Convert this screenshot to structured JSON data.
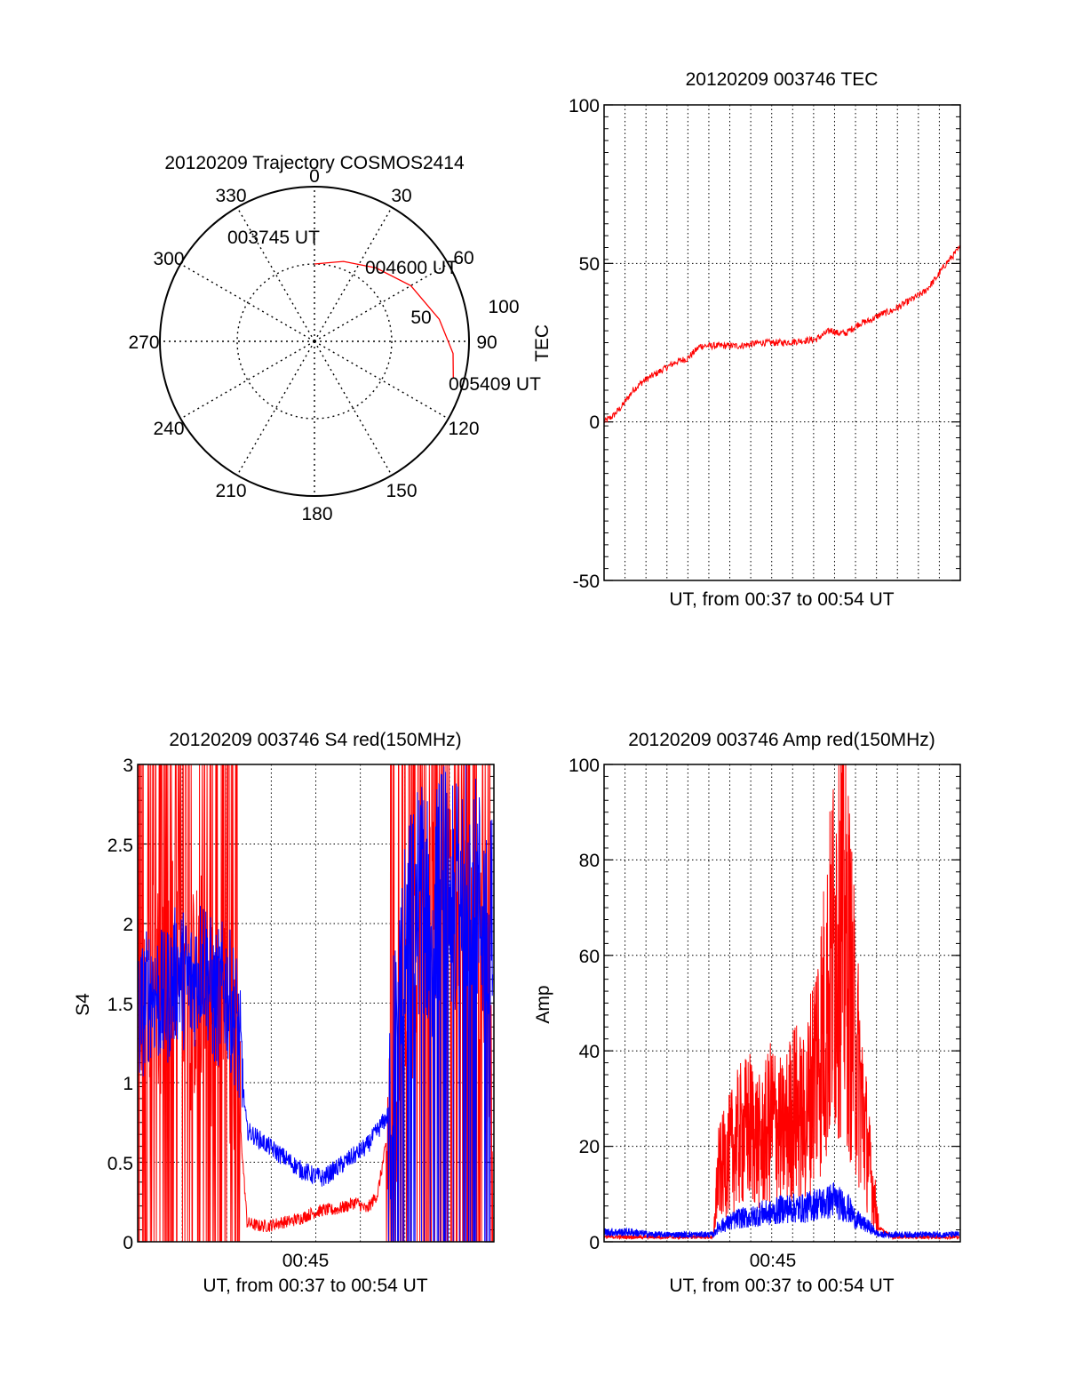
{
  "figure": {
    "polar_title": "20120209 Trajectory COSMOS2414",
    "polar_angle_labels": [
      "0",
      "30",
      "60",
      "90",
      "120",
      "150",
      "180",
      "210",
      "240",
      "270",
      "300",
      "330"
    ],
    "polar_radius_labels": [
      "50",
      "100"
    ],
    "polar_time_labels": [
      "003745 UT",
      "004600 UT",
      "005409 UT"
    ],
    "tec_title": "20120209 003746 TEC",
    "tec_ylabel": "TEC",
    "tec_xlabel": "UT, from 00:37 to 00:54 UT",
    "tec_yticks": [
      "100",
      "50",
      "0",
      "-50"
    ],
    "s4_title": "20120209 003746 S4 red(150MHz)",
    "s4_ylabel": "S4",
    "s4_xlabel": "UT, from 00:37 to 00:54 UT",
    "s4_xtick": "00:45",
    "s4_yticks": [
      "3",
      "2.5",
      "2",
      "1.5",
      "1",
      "0.5",
      "0"
    ],
    "amp_title": "20120209 003746 Amp red(150MHz)",
    "amp_ylabel": "Amp",
    "amp_xlabel": "UT, from 00:37 to 00:54 UT",
    "amp_xtick": "00:45",
    "amp_yticks": [
      "100",
      "80",
      "60",
      "40",
      "20",
      "0"
    ]
  },
  "chart_data": [
    {
      "type": "polar-trajectory",
      "title": "20120209 Trajectory COSMOS2414",
      "angle_ticks_deg": [
        0,
        30,
        60,
        90,
        120,
        150,
        180,
        210,
        240,
        270,
        300,
        330
      ],
      "radius_ticks": [
        50,
        100
      ],
      "radius_max": 100,
      "trajectory": [
        {
          "azimuth": 0,
          "radius": 50
        },
        {
          "azimuth": 20,
          "radius": 55
        },
        {
          "azimuth": 40,
          "radius": 62
        },
        {
          "azimuth": 60,
          "radius": 72
        },
        {
          "azimuth": 80,
          "radius": 82
        },
        {
          "azimuth": 95,
          "radius": 90
        },
        {
          "azimuth": 105,
          "radius": 93
        }
      ],
      "time_labels": [
        {
          "text": "003745 UT",
          "azimuth": 0,
          "radius": 50
        },
        {
          "text": "004600 UT",
          "azimuth": 48,
          "radius": 66
        },
        {
          "text": "005409 UT",
          "azimuth": 105,
          "radius": 93
        }
      ],
      "colors": {
        "trajectory": "#ff0000"
      }
    },
    {
      "type": "line",
      "title": "20120209 003746 TEC",
      "xlabel": "UT, from 00:37 to 00:54 UT",
      "ylabel": "TEC",
      "xlim": [
        37.77,
        54.15
      ],
      "ylim": [
        -50,
        100
      ],
      "yticks": [
        -50,
        0,
        50,
        100
      ],
      "grid": true,
      "series": [
        {
          "color": "#ff0000",
          "x": [
            37.77,
            38.2,
            38.6,
            39.1,
            39.6,
            40.1,
            40.6,
            41.1,
            41.6,
            42.2,
            43.0,
            44.0,
            45.0,
            46.0,
            47.5,
            48.2,
            48.5,
            48.9,
            49.5,
            50.0,
            50.5,
            51.0,
            51.5,
            52.0,
            52.5,
            53.0,
            53.5,
            54.15
          ],
          "y": [
            0,
            2,
            5,
            10,
            13,
            15,
            17,
            19,
            20,
            24,
            24,
            24,
            25,
            25,
            26,
            29,
            28,
            28,
            31,
            32,
            34,
            35,
            37,
            39,
            41,
            45,
            50,
            55
          ]
        }
      ]
    },
    {
      "type": "line",
      "title": "20120209 003746 S4 red(150MHz)",
      "xlabel": "UT, from 00:37 to 00:54 UT",
      "ylabel": "S4",
      "xlim": [
        37.77,
        54.15
      ],
      "ylim": [
        0,
        3
      ],
      "yticks": [
        0,
        0.5,
        1,
        1.5,
        2,
        2.5,
        3
      ],
      "xtick_labels": [
        "00:45"
      ],
      "grid": true,
      "series": [
        {
          "color": "#ff0000",
          "x": [
            37.8,
            38.4,
            39.0,
            39.6,
            40.2,
            40.8,
            41.3,
            41.8,
            42.3,
            42.8,
            43.3,
            43.8,
            44.3,
            44.8,
            45.3,
            45.8,
            46.3,
            46.8,
            47.3,
            47.8,
            48.3,
            48.8,
            49.3,
            49.8,
            50.3,
            50.8,
            51.3,
            51.8,
            52.3,
            52.8,
            53.3,
            53.8,
            54.1
          ],
          "y": [
            1.6,
            1.7,
            1.6,
            1.8,
            1.5,
            1.7,
            1.3,
            1.4,
            1.1,
            0.12,
            0.1,
            0.1,
            0.12,
            0.13,
            0.15,
            0.18,
            0.2,
            0.2,
            0.22,
            0.25,
            0.2,
            0.3,
            0.7,
            1.2,
            1.5,
            1.8,
            2.0,
            1.9,
            2.2,
            2.0,
            1.8,
            1.5,
            0.9
          ]
        },
        {
          "color": "#0000ff",
          "x": [
            37.8,
            38.4,
            39.0,
            39.6,
            40.2,
            40.8,
            41.3,
            41.8,
            42.3,
            42.8,
            43.3,
            43.8,
            44.3,
            44.8,
            45.3,
            45.8,
            46.3,
            46.8,
            47.3,
            47.8,
            48.3,
            48.8,
            49.3,
            49.8,
            50.3,
            50.8,
            51.3,
            51.8,
            52.3,
            52.8,
            53.3,
            53.8,
            54.1
          ],
          "y": [
            1.4,
            1.6,
            1.5,
            1.7,
            1.6,
            1.8,
            1.5,
            1.6,
            1.4,
            0.7,
            0.65,
            0.6,
            0.55,
            0.5,
            0.45,
            0.42,
            0.4,
            0.45,
            0.5,
            0.55,
            0.6,
            0.7,
            0.8,
            1.5,
            2.0,
            2.2,
            2.0,
            2.3,
            2.1,
            2.4,
            2.2,
            2.0,
            2.3
          ]
        }
      ]
    },
    {
      "type": "line",
      "title": "20120209 003746 Amp red(150MHz)",
      "xlabel": "UT, from 00:37 to 00:54 UT",
      "ylabel": "Amp",
      "xlim": [
        37.77,
        54.15
      ],
      "ylim": [
        0,
        100
      ],
      "yticks": [
        0,
        20,
        40,
        60,
        80,
        100
      ],
      "xtick_labels": [
        "00:45"
      ],
      "grid": true,
      "series": [
        {
          "color": "#ff0000",
          "x": [
            37.8,
            39.0,
            40.0,
            41.0,
            42.0,
            42.8,
            43.0,
            43.5,
            44.0,
            44.5,
            45.0,
            45.5,
            46.0,
            46.5,
            47.0,
            47.5,
            48.0,
            48.3,
            48.6,
            49.0,
            49.3,
            49.6,
            50.0,
            50.4,
            51.0,
            52.0,
            53.0,
            54.1
          ],
          "y": [
            1,
            1,
            1,
            1,
            1,
            1,
            14,
            18,
            22,
            24,
            20,
            26,
            22,
            28,
            25,
            38,
            48,
            60,
            72,
            58,
            42,
            30,
            15,
            3,
            1,
            1,
            1,
            1
          ]
        },
        {
          "color": "#0000ff",
          "x": [
            37.8,
            39.0,
            40.0,
            41.0,
            42.0,
            42.8,
            43.0,
            43.5,
            44.0,
            44.5,
            45.0,
            45.5,
            46.0,
            46.5,
            47.0,
            47.5,
            48.0,
            48.3,
            48.6,
            49.0,
            49.3,
            49.6,
            50.0,
            50.4,
            51.0,
            52.0,
            53.0,
            54.1
          ],
          "y": [
            2,
            2,
            1.5,
            1.5,
            1.5,
            1.5,
            3,
            4,
            5,
            5,
            6,
            6,
            7,
            7,
            7,
            8,
            8,
            9,
            8,
            7,
            5,
            4,
            3,
            1.5,
            1.5,
            1.5,
            1.5,
            1.5
          ]
        }
      ]
    }
  ]
}
